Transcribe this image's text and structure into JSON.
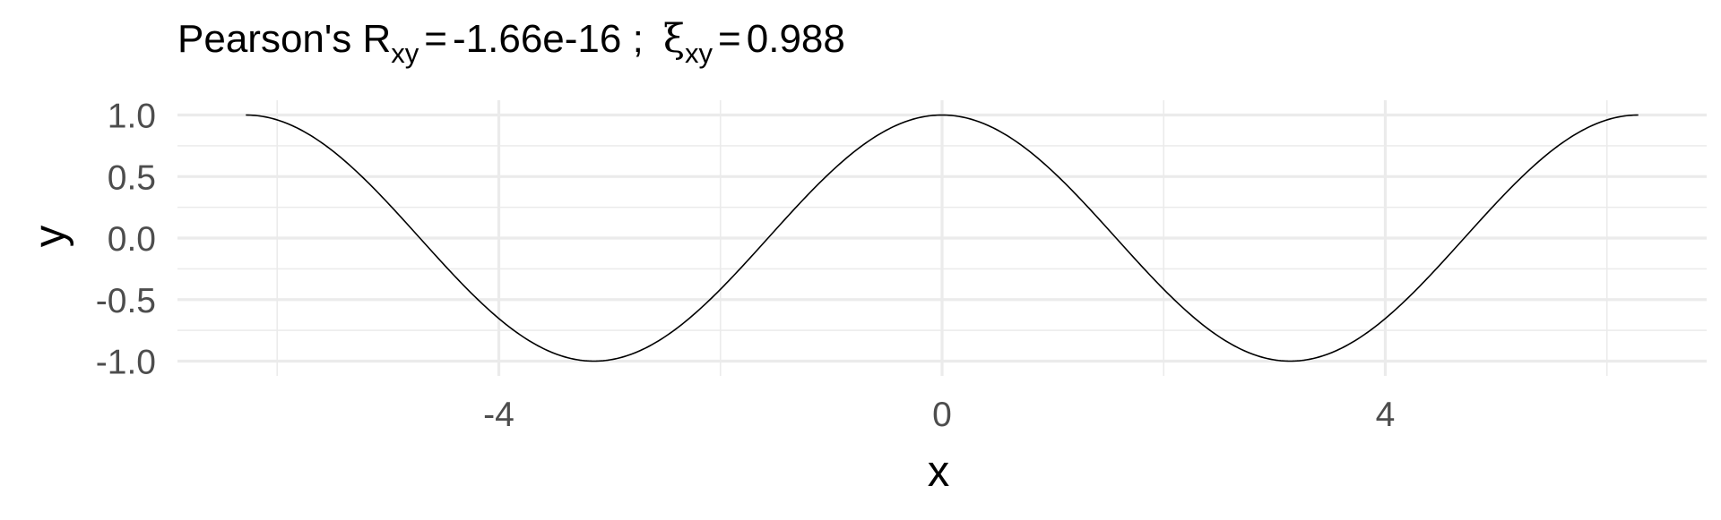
{
  "chart_data": {
    "type": "line",
    "title": {
      "prefix": "Pearson's R",
      "r_subscript": "xy",
      "r_value": "-1.66e-16 ;",
      "xi_symbol": "ξ",
      "xi_subscript": "xy",
      "xi_value": "0.988"
    },
    "xlabel": "x",
    "ylabel": "y",
    "xlim": [
      -6.9,
      6.9
    ],
    "ylim": [
      -1.12,
      1.12
    ],
    "x_ticks": [
      -4,
      0,
      4
    ],
    "x_tick_labels": [
      "-4",
      "0",
      "4"
    ],
    "x_minor_ticks": [
      -6,
      -2,
      2,
      6
    ],
    "y_ticks": [
      -1.0,
      -0.5,
      0.0,
      0.5,
      1.0
    ],
    "y_tick_labels": [
      "-1.0",
      "-0.5",
      "0.0",
      "0.5",
      "1.0"
    ],
    "y_minor_ticks": [
      -0.75,
      -0.25,
      0.25,
      0.75
    ],
    "grid": true,
    "series": [
      {
        "function": "cos(x)",
        "x_range": [
          -6.283185,
          6.283185
        ],
        "color": "#000000"
      }
    ]
  }
}
